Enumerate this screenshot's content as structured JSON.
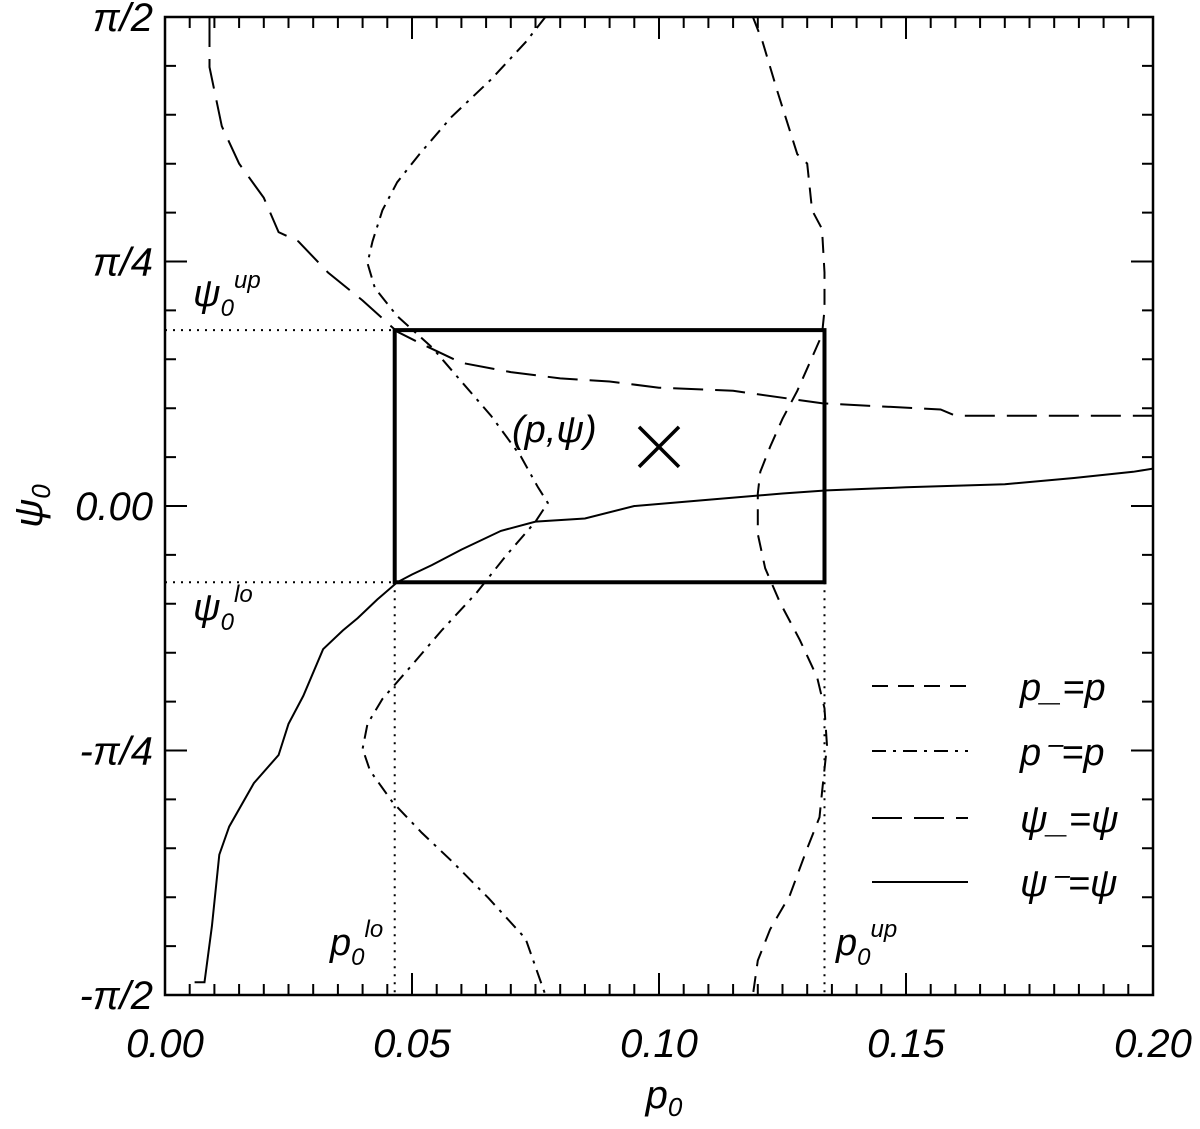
{
  "chart_data": {
    "type": "line",
    "xlabel": "p",
    "xlabel_sub": "0",
    "ylabel": "ψ",
    "ylabel_sub": "0",
    "xlim": [
      0.0,
      0.2
    ],
    "ylim": [
      -1.5708,
      1.5708
    ],
    "xticks": [
      {
        "value": 0.0,
        "label": "0.00"
      },
      {
        "value": 0.05,
        "label": "0.05"
      },
      {
        "value": 0.1,
        "label": "0.10"
      },
      {
        "value": 0.15,
        "label": "0.15"
      },
      {
        "value": 0.2,
        "label": "0.20"
      }
    ],
    "yticks": [
      {
        "value": -1.5708,
        "label": "-π/2"
      },
      {
        "value": -0.7854,
        "label": "-π/4"
      },
      {
        "value": 0.0,
        "label": "0.00"
      },
      {
        "value": 0.7854,
        "label": "π/4"
      },
      {
        "value": 1.5708,
        "label": "π/2"
      }
    ],
    "grid": false,
    "legend_position": "bottom-right",
    "series": [
      {
        "name": "p_=p",
        "dash": "dashed",
        "points": [
          [
            0.119,
            1.5708
          ],
          [
            0.121,
            1.49
          ],
          [
            0.124,
            1.33
          ],
          [
            0.128,
            1.13
          ],
          [
            0.13,
            1.1
          ],
          [
            0.131,
            0.95
          ],
          [
            0.133,
            0.89
          ],
          [
            0.1335,
            0.75
          ],
          [
            0.1335,
            0.63
          ],
          [
            0.133,
            0.55
          ],
          [
            0.1305,
            0.46
          ],
          [
            0.128,
            0.37
          ],
          [
            0.125,
            0.28
          ],
          [
            0.1225,
            0.19
          ],
          [
            0.1205,
            0.11
          ],
          [
            0.12,
            0.04
          ],
          [
            0.12,
            -0.09
          ],
          [
            0.1215,
            -0.2
          ],
          [
            0.1245,
            -0.31
          ],
          [
            0.1285,
            -0.43
          ],
          [
            0.132,
            -0.55
          ],
          [
            0.1335,
            -0.65
          ],
          [
            0.134,
            -0.77
          ],
          [
            0.133,
            -0.92
          ],
          [
            0.1325,
            -1.0
          ],
          [
            0.13,
            -1.1
          ],
          [
            0.1265,
            -1.25
          ],
          [
            0.1225,
            -1.36
          ],
          [
            0.12,
            -1.46
          ],
          [
            0.119,
            -1.5708
          ]
        ]
      },
      {
        "name": "p⁻=p",
        "dash": "dash-dot",
        "points": [
          [
            0.077,
            1.5708
          ],
          [
            0.073,
            1.49
          ],
          [
            0.066,
            1.37
          ],
          [
            0.058,
            1.25
          ],
          [
            0.0515,
            1.13
          ],
          [
            0.047,
            1.04
          ],
          [
            0.044,
            0.95
          ],
          [
            0.042,
            0.85
          ],
          [
            0.041,
            0.78
          ],
          [
            0.0425,
            0.7
          ],
          [
            0.047,
            0.61
          ],
          [
            0.054,
            0.51
          ],
          [
            0.06,
            0.4
          ],
          [
            0.066,
            0.29
          ],
          [
            0.072,
            0.16
          ],
          [
            0.0755,
            0.06
          ],
          [
            0.0775,
            0.01
          ],
          [
            0.075,
            -0.05
          ],
          [
            0.069,
            -0.16
          ],
          [
            0.063,
            -0.28
          ],
          [
            0.056,
            -0.4
          ],
          [
            0.0495,
            -0.52
          ],
          [
            0.044,
            -0.62
          ],
          [
            0.041,
            -0.7
          ],
          [
            0.04,
            -0.78
          ],
          [
            0.0415,
            -0.85
          ],
          [
            0.046,
            -0.95
          ],
          [
            0.052,
            -1.05
          ],
          [
            0.058,
            -1.14
          ],
          [
            0.0655,
            -1.26
          ],
          [
            0.073,
            -1.39
          ],
          [
            0.077,
            -1.5708
          ]
        ]
      },
      {
        "name": "ψ_=ψ",
        "dash": "long-dashed",
        "points": [
          [
            0.009,
            1.5708
          ],
          [
            0.009,
            1.41
          ],
          [
            0.0115,
            1.22
          ],
          [
            0.015,
            1.1
          ],
          [
            0.02,
            0.99
          ],
          [
            0.023,
            0.88
          ],
          [
            0.027,
            0.85
          ],
          [
            0.033,
            0.75
          ],
          [
            0.04,
            0.66
          ],
          [
            0.047,
            0.56
          ],
          [
            0.052,
            0.52
          ],
          [
            0.06,
            0.46
          ],
          [
            0.07,
            0.43
          ],
          [
            0.08,
            0.41
          ],
          [
            0.09,
            0.4
          ],
          [
            0.1,
            0.38
          ],
          [
            0.115,
            0.37
          ],
          [
            0.133,
            0.33
          ],
          [
            0.145,
            0.32
          ],
          [
            0.157,
            0.31
          ],
          [
            0.16,
            0.29
          ],
          [
            0.18,
            0.29
          ],
          [
            0.2,
            0.29
          ]
        ]
      },
      {
        "name": "ψ⁻=ψ",
        "dash": "solid",
        "points": [
          [
            0.006,
            -1.53
          ],
          [
            0.008,
            -1.53
          ],
          [
            0.0095,
            -1.35
          ],
          [
            0.011,
            -1.12
          ],
          [
            0.013,
            -1.03
          ],
          [
            0.018,
            -0.89
          ],
          [
            0.023,
            -0.8
          ],
          [
            0.025,
            -0.7
          ],
          [
            0.028,
            -0.61
          ],
          [
            0.032,
            -0.46
          ],
          [
            0.036,
            -0.4
          ],
          [
            0.039,
            -0.36
          ],
          [
            0.043,
            -0.3
          ],
          [
            0.047,
            -0.245
          ],
          [
            0.05,
            -0.22
          ],
          [
            0.054,
            -0.19
          ],
          [
            0.06,
            -0.14
          ],
          [
            0.068,
            -0.08
          ],
          [
            0.075,
            -0.05
          ],
          [
            0.085,
            -0.04
          ],
          [
            0.095,
            0.0
          ],
          [
            0.11,
            0.02
          ],
          [
            0.125,
            0.04
          ],
          [
            0.134,
            0.05
          ],
          [
            0.15,
            0.06
          ],
          [
            0.17,
            0.07
          ],
          [
            0.184,
            0.09
          ],
          [
            0.196,
            0.11
          ],
          [
            0.2,
            0.12
          ]
        ]
      }
    ],
    "region_box": {
      "x": [
        0.0465,
        0.1335
      ],
      "y": [
        -0.245,
        0.565
      ]
    },
    "reference_lines": {
      "p0_lo": 0.0465,
      "p0_up": 0.1335,
      "psi0_lo": -0.245,
      "psi0_up": 0.565
    },
    "marker": {
      "x": 0.1,
      "y": 0.19,
      "symbol": "×"
    },
    "annotations": [
      {
        "text": "(p,ψ)"
      },
      {
        "text": "ψ",
        "sup": "up",
        "sub": "0"
      },
      {
        "text": "ψ",
        "sup": "lo",
        "sub": "0"
      },
      {
        "text": "p",
        "sup": "lo",
        "sub": "0"
      },
      {
        "text": "p",
        "sup": "up",
        "sub": "0"
      }
    ]
  }
}
